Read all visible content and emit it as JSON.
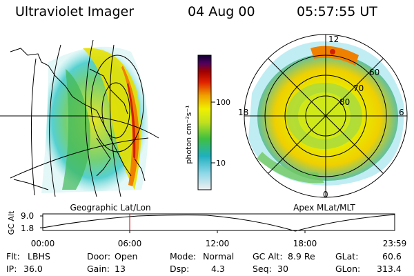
{
  "header": {
    "title": "Ultraviolet Imager",
    "date": "04 Aug 00",
    "time": "05:57:55 UT"
  },
  "left_panel": {
    "caption": "Geographic Lat/Lon"
  },
  "right_panel": {
    "caption": "Apex MLat/MLT",
    "mlt_labels": {
      "top": "12",
      "bottom": "0",
      "left": "18",
      "right": "6"
    },
    "lat_labels": [
      "60",
      "70",
      "80"
    ]
  },
  "colorbar": {
    "unit_label": "photon cm⁻²s⁻¹",
    "ticks": [
      "100",
      "10"
    ]
  },
  "altitude_plot": {
    "ylabel": "GC Alt",
    "yticks": [
      "9.0",
      "1.8"
    ],
    "xticks": [
      "00:00",
      "06:00",
      "12:00",
      "18:00",
      "23:59"
    ],
    "marker_color": "#c00000"
  },
  "info": {
    "filter_label": "Flt:",
    "filter_value": "LBHS",
    "ip_label": "IP:",
    "ip_value": "36.0",
    "door_label": "Door:",
    "door_value": "Open",
    "gain_label": "Gain:",
    "gain_value": "13",
    "mode_label": "Mode:",
    "mode_value": "Normal",
    "dsp_label": "Dsp:",
    "dsp_value": "4.3",
    "gcalt_label": "GC Alt:",
    "gcalt_value": "8.9 Re",
    "seq_label": "Seq:",
    "seq_value": "30",
    "glat_label": "GLat:",
    "glat_value": "60.6",
    "glon_label": "GLon:",
    "glon_value": "313.4"
  }
}
